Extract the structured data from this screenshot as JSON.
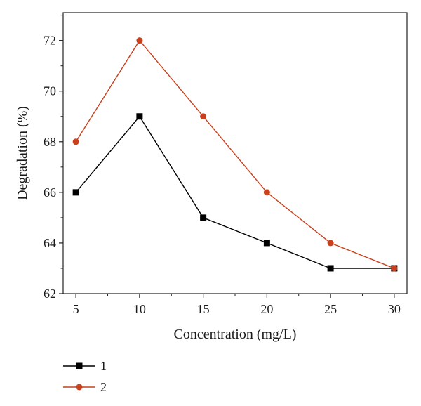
{
  "chart_data": {
    "type": "line",
    "xlabel": "Concentration (mg/L)",
    "ylabel": "Degradation (%)",
    "x": [
      5,
      10,
      15,
      20,
      25,
      30
    ],
    "xticks": [
      5,
      10,
      15,
      20,
      25,
      30
    ],
    "yticks": [
      62,
      64,
      66,
      68,
      70,
      72
    ],
    "xlim": [
      4,
      31
    ],
    "ylim": [
      62,
      73.1
    ],
    "grid": false,
    "legend_position": "bottom-left, below plot",
    "series": [
      {
        "name": "1",
        "values": [
          66,
          69,
          65,
          64,
          63,
          63
        ],
        "color": "#000000",
        "marker": "square"
      },
      {
        "name": "2",
        "values": [
          68,
          72,
          69,
          66,
          64,
          63
        ],
        "color": "#c8401c",
        "marker": "circle"
      }
    ]
  }
}
